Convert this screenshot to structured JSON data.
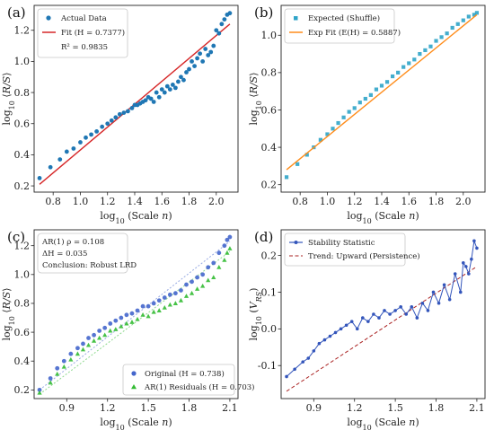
{
  "chart_data": [
    {
      "id": "a",
      "panel_label": "(a)",
      "type": "scatter",
      "xlabel": "log10 (Scale n)",
      "ylabel": "log10 ⟨R/S⟩",
      "xlim": [
        0.66,
        2.16
      ],
      "ylim": [
        0.16,
        1.36
      ],
      "xticks": [
        0.8,
        1.0,
        1.2,
        1.4,
        1.6,
        1.8,
        2.0
      ],
      "yticks": [
        0.2,
        0.4,
        0.6,
        0.8,
        1.0,
        1.2
      ],
      "colors": {
        "scatter": "#1f77b4",
        "fit": "#d62728"
      },
      "legend": {
        "position": "top-left",
        "scatter_label": "Actual Data",
        "fit_label": "Fit (H = 0.7377)",
        "extra_text": "R² = 0.9835"
      },
      "fit_line": {
        "x": [
          0.7,
          2.1
        ],
        "y": [
          0.21,
          1.24
        ]
      },
      "series": [
        {
          "x": [
            0.7,
            0.78,
            0.85,
            0.9,
            0.95,
            1.0,
            1.04,
            1.08,
            1.12,
            1.16,
            1.2,
            1.23,
            1.26,
            1.29,
            1.32,
            1.35,
            1.38,
            1.4,
            1.42,
            1.44,
            1.46,
            1.48,
            1.5,
            1.52,
            1.54,
            1.56,
            1.58,
            1.6,
            1.62,
            1.64,
            1.66,
            1.68,
            1.7,
            1.72,
            1.74,
            1.76,
            1.78,
            1.8,
            1.82,
            1.84,
            1.86,
            1.88,
            1.9,
            1.92,
            1.94,
            1.96,
            1.98,
            2.0,
            2.02,
            2.04,
            2.06,
            2.08,
            2.1
          ],
          "y": [
            0.25,
            0.32,
            0.37,
            0.42,
            0.44,
            0.48,
            0.51,
            0.53,
            0.55,
            0.58,
            0.6,
            0.62,
            0.64,
            0.66,
            0.67,
            0.68,
            0.7,
            0.72,
            0.72,
            0.73,
            0.74,
            0.75,
            0.77,
            0.76,
            0.74,
            0.8,
            0.77,
            0.82,
            0.8,
            0.84,
            0.82,
            0.85,
            0.83,
            0.87,
            0.9,
            0.88,
            0.93,
            0.95,
            1.0,
            0.97,
            1.02,
            1.05,
            1.0,
            1.08,
            1.04,
            1.06,
            1.1,
            1.2,
            1.18,
            1.24,
            1.27,
            1.3,
            1.31
          ]
        }
      ]
    },
    {
      "id": "b",
      "panel_label": "(b)",
      "type": "scatter",
      "xlabel": "log10 (Scale n)",
      "ylabel": "log10 ⟨R/S⟩",
      "xlim": [
        0.66,
        2.16
      ],
      "ylim": [
        0.16,
        1.16
      ],
      "xticks": [
        0.8,
        1.0,
        1.2,
        1.4,
        1.6,
        1.8,
        2.0
      ],
      "yticks": [
        0.2,
        0.4,
        0.6,
        0.8,
        1.0
      ],
      "colors": {
        "scatter": "#2fa4c8",
        "fit": "#ff8c1a"
      },
      "legend": {
        "position": "top-left",
        "scatter_label": "Expected (Shuffle)",
        "fit_label": "Exp Fit (E(H) = 0.5887)"
      },
      "fit_line": {
        "x": [
          0.7,
          2.1
        ],
        "y": [
          0.28,
          1.11
        ]
      },
      "series": [
        {
          "x": [
            0.7,
            0.78,
            0.85,
            0.9,
            0.95,
            1.0,
            1.04,
            1.08,
            1.12,
            1.16,
            1.2,
            1.24,
            1.28,
            1.32,
            1.36,
            1.4,
            1.44,
            1.48,
            1.52,
            1.56,
            1.6,
            1.64,
            1.68,
            1.72,
            1.76,
            1.8,
            1.84,
            1.88,
            1.92,
            1.96,
            2.0,
            2.04,
            2.08,
            2.1
          ],
          "y": [
            0.24,
            0.31,
            0.36,
            0.4,
            0.44,
            0.47,
            0.5,
            0.53,
            0.56,
            0.59,
            0.61,
            0.64,
            0.66,
            0.68,
            0.71,
            0.73,
            0.75,
            0.78,
            0.8,
            0.83,
            0.85,
            0.87,
            0.9,
            0.92,
            0.94,
            0.97,
            0.99,
            1.01,
            1.04,
            1.06,
            1.08,
            1.1,
            1.11,
            1.12
          ]
        }
      ]
    },
    {
      "id": "c",
      "panel_label": "(c)",
      "type": "scatter",
      "xlabel": "log10 (Scale n)",
      "ylabel": "log10 ⟨R/S⟩",
      "xlim": [
        0.66,
        2.16
      ],
      "ylim": [
        0.14,
        1.31
      ],
      "xticks": [
        0.9,
        1.2,
        1.5,
        1.8,
        2.1
      ],
      "yticks": [
        0.2,
        0.4,
        0.6,
        0.8,
        1.0,
        1.2
      ],
      "colors": {
        "original": "#4466cc",
        "ar": "#33bb33"
      },
      "annotation": [
        "AR(1) ρ = 0.108",
        "ΔH = 0.035",
        "Conclusion: Robust LRD"
      ],
      "legend": {
        "position": "bottom-right",
        "original_label": "Original (H = 0.738)",
        "ar_label": "AR(1) Residuals (H = 0.703)"
      },
      "series": [
        {
          "name": "Original (H = 0.738)",
          "x": [
            0.7,
            0.78,
            0.83,
            0.88,
            0.93,
            0.98,
            1.02,
            1.06,
            1.1,
            1.14,
            1.18,
            1.22,
            1.26,
            1.3,
            1.34,
            1.38,
            1.42,
            1.46,
            1.5,
            1.54,
            1.58,
            1.62,
            1.66,
            1.7,
            1.74,
            1.78,
            1.82,
            1.86,
            1.9,
            1.94,
            1.98,
            2.02,
            2.06,
            2.08,
            2.1
          ],
          "y": [
            0.2,
            0.28,
            0.35,
            0.4,
            0.45,
            0.49,
            0.52,
            0.56,
            0.58,
            0.61,
            0.63,
            0.66,
            0.68,
            0.7,
            0.72,
            0.73,
            0.75,
            0.78,
            0.78,
            0.8,
            0.82,
            0.84,
            0.86,
            0.87,
            0.89,
            0.93,
            0.95,
            0.98,
            1.0,
            1.05,
            1.08,
            1.15,
            1.2,
            1.24,
            1.26
          ]
        },
        {
          "name": "AR(1) Residuals (H = 0.703)",
          "x": [
            0.7,
            0.78,
            0.83,
            0.88,
            0.93,
            0.98,
            1.02,
            1.06,
            1.1,
            1.14,
            1.18,
            1.22,
            1.26,
            1.3,
            1.34,
            1.38,
            1.42,
            1.46,
            1.5,
            1.54,
            1.58,
            1.62,
            1.66,
            1.7,
            1.74,
            1.78,
            1.82,
            1.86,
            1.9,
            1.94,
            1.98,
            2.02,
            2.06,
            2.08,
            2.1
          ],
          "y": [
            0.18,
            0.25,
            0.31,
            0.36,
            0.41,
            0.45,
            0.48,
            0.51,
            0.54,
            0.56,
            0.58,
            0.61,
            0.62,
            0.64,
            0.66,
            0.67,
            0.69,
            0.72,
            0.71,
            0.74,
            0.75,
            0.77,
            0.79,
            0.8,
            0.82,
            0.85,
            0.87,
            0.9,
            0.92,
            0.96,
            0.98,
            1.05,
            1.1,
            1.15,
            1.18
          ]
        }
      ]
    },
    {
      "id": "d",
      "panel_label": "(d)",
      "type": "line",
      "xlabel": "log10 (Scale n)",
      "ylabel": "log10 (V_RS)",
      "xlim": [
        0.66,
        2.16
      ],
      "ylim": [
        -0.19,
        0.27
      ],
      "xticks": [
        0.9,
        1.2,
        1.5,
        1.8,
        2.1
      ],
      "yticks": [
        -0.1,
        0.0,
        0.1,
        0.2
      ],
      "colors": {
        "line": "#3355bb",
        "trend": "#aa2222"
      },
      "legend": {
        "position": "top-left",
        "line_label": "Stability Statistic",
        "trend_label": "Trend: Upward (Persistence)"
      },
      "trend_line": {
        "x": [
          0.7,
          2.1
        ],
        "y": [
          -0.17,
          0.17
        ]
      },
      "series": [
        {
          "x": [
            0.7,
            0.76,
            0.82,
            0.86,
            0.9,
            0.94,
            0.98,
            1.02,
            1.06,
            1.1,
            1.14,
            1.18,
            1.22,
            1.26,
            1.3,
            1.34,
            1.38,
            1.42,
            1.46,
            1.5,
            1.54,
            1.58,
            1.62,
            1.66,
            1.7,
            1.74,
            1.78,
            1.82,
            1.86,
            1.9,
            1.94,
            1.98,
            2.0,
            2.02,
            2.04,
            2.06,
            2.08,
            2.1
          ],
          "y": [
            -0.13,
            -0.11,
            -0.09,
            -0.08,
            -0.06,
            -0.04,
            -0.03,
            -0.02,
            -0.01,
            0.0,
            0.01,
            0.02,
            0.0,
            0.03,
            0.02,
            0.04,
            0.03,
            0.05,
            0.04,
            0.05,
            0.06,
            0.04,
            0.06,
            0.03,
            0.07,
            0.05,
            0.1,
            0.07,
            0.12,
            0.08,
            0.15,
            0.1,
            0.18,
            0.17,
            0.15,
            0.19,
            0.24,
            0.22
          ]
        }
      ]
    }
  ]
}
